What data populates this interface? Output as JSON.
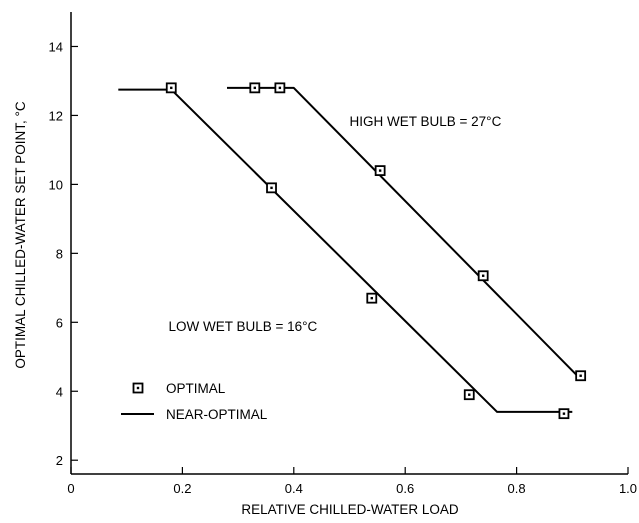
{
  "chart_data": {
    "type": "scatter",
    "xlabel": "RELATIVE CHILLED-WATER LOAD",
    "ylabel": "OPTIMAL CHILLED-WATER SET POINT, °C",
    "xlim": [
      0,
      1.0
    ],
    "ylim": [
      1.6,
      15.0
    ],
    "x_ticks": [
      0,
      0.2,
      0.4,
      0.6,
      0.8,
      1.0
    ],
    "x_tick_labels": [
      "0",
      "0.2",
      "0.4",
      "0.6",
      "0.8",
      "1.0"
    ],
    "y_ticks": [
      2,
      4,
      6,
      8,
      10,
      12,
      14
    ],
    "y_tick_labels": [
      "2",
      "4",
      "6",
      "8",
      "10",
      "12",
      "14"
    ],
    "grid": false,
    "series": [
      {
        "name": "LOW WET BULB = 16°C",
        "optimal_points": [
          {
            "x": 0.18,
            "y": 12.8
          },
          {
            "x": 0.36,
            "y": 9.9
          },
          {
            "x": 0.54,
            "y": 6.7
          },
          {
            "x": 0.715,
            "y": 3.9
          },
          {
            "x": 0.885,
            "y": 3.35
          }
        ],
        "near_optimal_line": [
          {
            "x": 0.085,
            "y": 12.75
          },
          {
            "x": 0.18,
            "y": 12.75
          },
          {
            "x": 0.765,
            "y": 3.4
          },
          {
            "x": 0.9,
            "y": 3.4
          }
        ]
      },
      {
        "name": "HIGH WET BULB = 27°C",
        "optimal_points": [
          {
            "x": 0.33,
            "y": 12.8
          },
          {
            "x": 0.375,
            "y": 12.8
          },
          {
            "x": 0.555,
            "y": 10.4
          },
          {
            "x": 0.74,
            "y": 7.35
          },
          {
            "x": 0.915,
            "y": 4.45
          }
        ],
        "near_optimal_line": [
          {
            "x": 0.28,
            "y": 12.8
          },
          {
            "x": 0.4,
            "y": 12.8
          },
          {
            "x": 0.915,
            "y": 4.35
          }
        ]
      }
    ],
    "annotations": [
      {
        "text": "HIGH WET BULB = 27°C",
        "x": 0.5,
        "y": 11.7
      },
      {
        "text": "LOW WET BULB = 16°C",
        "x": 0.175,
        "y": 5.75
      }
    ],
    "legend": {
      "placement": "bottom-left",
      "entries": [
        {
          "label": "OPTIMAL",
          "marker": "square-dot"
        },
        {
          "label": "NEAR-OPTIMAL",
          "marker": "line"
        }
      ]
    },
    "colors": {
      "line": "#000000",
      "marker": "#000000",
      "background": "#ffffff"
    }
  }
}
